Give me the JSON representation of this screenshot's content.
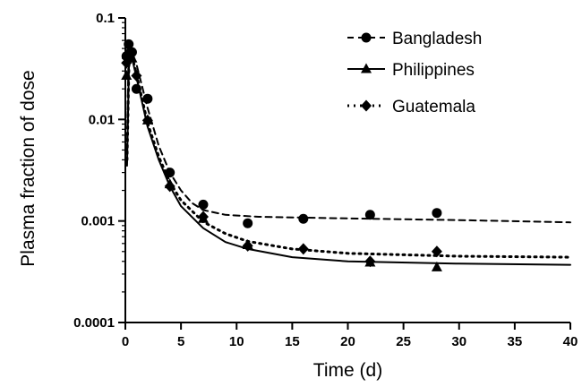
{
  "chart_data": {
    "type": "scatter",
    "xlabel": "Time (d)",
    "ylabel": "Plasma fraction of dose",
    "xlim": [
      0,
      40
    ],
    "ylim": [
      0.0001,
      0.1
    ],
    "yscale": "log",
    "grid": false,
    "legend_position": "top-right",
    "x_ticks": [
      "0",
      "5",
      "10",
      "15",
      "20",
      "25",
      "30",
      "35",
      "40"
    ],
    "y_ticks": [
      "0.0001",
      "0.001",
      "0.01",
      "0.1"
    ],
    "series": [
      {
        "name": "Bangladesh",
        "marker": "circle",
        "line": "dashed",
        "points": [
          {
            "x": 0.1,
            "y": 0.042
          },
          {
            "x": 0.3,
            "y": 0.055
          },
          {
            "x": 0.6,
            "y": 0.046
          },
          {
            "x": 1.0,
            "y": 0.02
          },
          {
            "x": 2.0,
            "y": 0.016
          },
          {
            "x": 4.0,
            "y": 0.003
          },
          {
            "x": 7.0,
            "y": 0.00145
          },
          {
            "x": 11.0,
            "y": 0.00095
          },
          {
            "x": 16.0,
            "y": 0.00105
          },
          {
            "x": 22.0,
            "y": 0.00115
          },
          {
            "x": 28.0,
            "y": 0.0012
          }
        ],
        "fit": [
          {
            "x": 0.15,
            "y": 0.005
          },
          {
            "x": 0.3,
            "y": 0.055
          },
          {
            "x": 0.5,
            "y": 0.05
          },
          {
            "x": 1.0,
            "y": 0.035
          },
          {
            "x": 2.0,
            "y": 0.013
          },
          {
            "x": 3.0,
            "y": 0.0055
          },
          {
            "x": 4.0,
            "y": 0.003
          },
          {
            "x": 5.0,
            "y": 0.002
          },
          {
            "x": 6.0,
            "y": 0.0015
          },
          {
            "x": 7.0,
            "y": 0.00128
          },
          {
            "x": 9.0,
            "y": 0.00115
          },
          {
            "x": 12.0,
            "y": 0.0011
          },
          {
            "x": 20.0,
            "y": 0.00106
          },
          {
            "x": 30.0,
            "y": 0.00102
          },
          {
            "x": 40.0,
            "y": 0.00097
          }
        ]
      },
      {
        "name": "Philippines",
        "marker": "triangle",
        "line": "solid",
        "points": [
          {
            "x": 0.1,
            "y": 0.027
          },
          {
            "x": 0.3,
            "y": 0.047
          },
          {
            "x": 0.6,
            "y": 0.04
          },
          {
            "x": 2.0,
            "y": 0.0098
          },
          {
            "x": 4.0,
            "y": 0.0023
          },
          {
            "x": 7.0,
            "y": 0.00105
          },
          {
            "x": 11.0,
            "y": 0.00058
          },
          {
            "x": 22.0,
            "y": 0.00039
          },
          {
            "x": 28.0,
            "y": 0.00035
          }
        ],
        "fit": [
          {
            "x": 0.15,
            "y": 0.0035
          },
          {
            "x": 0.35,
            "y": 0.045
          },
          {
            "x": 0.6,
            "y": 0.04
          },
          {
            "x": 1.0,
            "y": 0.026
          },
          {
            "x": 2.0,
            "y": 0.0085
          },
          {
            "x": 3.0,
            "y": 0.004
          },
          {
            "x": 4.0,
            "y": 0.0022
          },
          {
            "x": 5.0,
            "y": 0.0014
          },
          {
            "x": 7.0,
            "y": 0.00085
          },
          {
            "x": 9.0,
            "y": 0.00062
          },
          {
            "x": 11.0,
            "y": 0.00053
          },
          {
            "x": 15.0,
            "y": 0.00044
          },
          {
            "x": 20.0,
            "y": 0.0004
          },
          {
            "x": 30.0,
            "y": 0.00038
          },
          {
            "x": 40.0,
            "y": 0.00037
          }
        ]
      },
      {
        "name": "Guatemala",
        "marker": "diamond",
        "line": "dotted",
        "points": [
          {
            "x": 0.1,
            "y": 0.036
          },
          {
            "x": 0.3,
            "y": 0.04
          },
          {
            "x": 1.0,
            "y": 0.027
          },
          {
            "x": 2.0,
            "y": 0.0098
          },
          {
            "x": 4.0,
            "y": 0.0022
          },
          {
            "x": 7.0,
            "y": 0.0011
          },
          {
            "x": 11.0,
            "y": 0.00057
          },
          {
            "x": 16.0,
            "y": 0.00053
          },
          {
            "x": 22.0,
            "y": 0.0004
          },
          {
            "x": 28.0,
            "y": 0.0005
          }
        ],
        "fit": [
          {
            "x": 0.15,
            "y": 0.004
          },
          {
            "x": 0.35,
            "y": 0.046
          },
          {
            "x": 0.6,
            "y": 0.042
          },
          {
            "x": 1.0,
            "y": 0.028
          },
          {
            "x": 2.0,
            "y": 0.0092
          },
          {
            "x": 3.0,
            "y": 0.0043
          },
          {
            "x": 4.0,
            "y": 0.0024
          },
          {
            "x": 5.0,
            "y": 0.0016
          },
          {
            "x": 7.0,
            "y": 0.00098
          },
          {
            "x": 9.0,
            "y": 0.00075
          },
          {
            "x": 11.0,
            "y": 0.00063
          },
          {
            "x": 15.0,
            "y": 0.00053
          },
          {
            "x": 20.0,
            "y": 0.00048
          },
          {
            "x": 30.0,
            "y": 0.00045
          },
          {
            "x": 40.0,
            "y": 0.00044
          }
        ]
      }
    ]
  }
}
